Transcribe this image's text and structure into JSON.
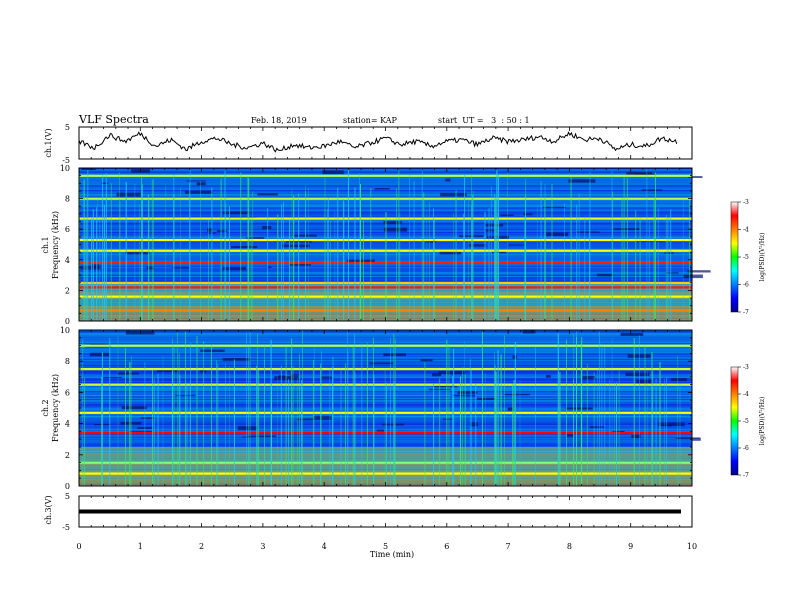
{
  "header": {
    "title": "VLF Spectra",
    "date": "Feb. 18, 2019",
    "station": "station= KAP",
    "start": "start  UT =   3  : 50 : 1"
  },
  "chart_data": {
    "type": "heatmap",
    "x_axis": {
      "label": "Time  (min)",
      "range": [
        0,
        10
      ],
      "ticks": [
        "0",
        "1",
        "2",
        "3",
        "4",
        "5",
        "6",
        "7",
        "8",
        "9",
        "10"
      ]
    },
    "ch1_waveform": {
      "ylabel": "ch.1(V)",
      "ylim": [
        -5,
        5
      ],
      "ticks": [
        "5",
        "-5"
      ],
      "t_min": [
        0,
        0.25,
        0.5,
        0.75,
        1,
        1.25,
        1.5,
        1.75,
        2,
        2.25,
        2.5,
        2.75,
        3,
        3.25,
        3.5,
        3.75,
        4,
        4.25,
        4.5,
        4.75,
        5,
        5.25,
        5.5,
        5.75,
        6,
        6.25,
        6.5,
        6.75,
        7,
        7.25,
        7.5,
        7.75,
        8,
        8.25,
        8.5,
        8.75,
        9,
        9.25,
        9.5,
        9.75
      ],
      "volts": [
        0.5,
        -1.5,
        2.5,
        0.5,
        3.0,
        -1.0,
        1.0,
        -2.0,
        0.5,
        1.5,
        -0.5,
        -1.5,
        0.0,
        -2.5,
        -0.5,
        -1.5,
        -1.0,
        0.5,
        -1.5,
        0.0,
        1.5,
        -0.5,
        0.5,
        -1.0,
        0.5,
        1.0,
        -0.5,
        1.5,
        0.5,
        1.0,
        2.0,
        0.5,
        3.0,
        1.0,
        1.5,
        -2.0,
        -0.5,
        -1.0,
        1.5,
        0.5
      ]
    },
    "ch1_spectrogram": {
      "ylabel": "ch.1\nFrequency  (kHz)",
      "ylim": [
        0,
        10
      ],
      "ticks": [
        "0",
        "2",
        "4",
        "6",
        "8",
        "10"
      ],
      "colorbar": {
        "label": "log(PSD)(V²/Hz)",
        "range": [
          -7,
          -3
        ],
        "ticks": [
          "-3",
          "-4",
          "-5",
          "-6",
          "-7"
        ]
      },
      "bands_khz_logpsd": [
        [
          0.7,
          -4.0
        ],
        [
          1.6,
          -4.5
        ],
        [
          2.2,
          -3.6
        ],
        [
          2.5,
          -4.3
        ],
        [
          3.8,
          -3.6
        ],
        [
          4.6,
          -4.5
        ],
        [
          5.3,
          -4.5
        ],
        [
          6.7,
          -4.6
        ],
        [
          8.0,
          -4.8
        ],
        [
          9.5,
          -4.8
        ]
      ]
    },
    "ch2_spectrogram": {
      "ylabel": "ch.2\nFrequency  (kHz)",
      "ylim": [
        0,
        10
      ],
      "ticks": [
        "0",
        "2",
        "4",
        "6",
        "8",
        "10"
      ],
      "colorbar": {
        "label": "log(PSD)(V²/Hz)",
        "range": [
          -7,
          -3
        ],
        "ticks": [
          "-3",
          "-4",
          "-5",
          "-6",
          "-7"
        ]
      },
      "bands_khz_logpsd": [
        [
          0.8,
          -4.5
        ],
        [
          1.5,
          -5.0
        ],
        [
          3.4,
          -3.5
        ],
        [
          4.7,
          -4.5
        ],
        [
          6.5,
          -4.7
        ],
        [
          7.5,
          -4.7
        ],
        [
          9.0,
          -4.8
        ]
      ]
    },
    "ch3_waveform": {
      "ylabel": "ch.3(V)",
      "ylim": [
        -5,
        5
      ],
      "ticks": [
        "5",
        "-5"
      ],
      "level_v": 0
    }
  }
}
